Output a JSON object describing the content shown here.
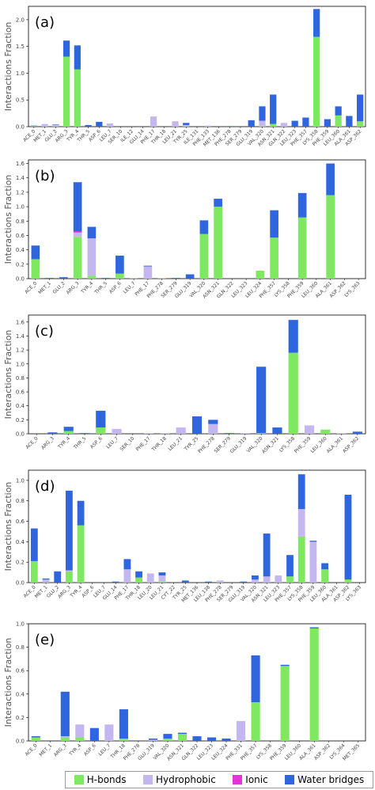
{
  "colors": {
    "hbonds": "#7de860",
    "hydrophobic": "#c4b6ef",
    "ionic": "#e632d6",
    "water": "#2f66e0"
  },
  "legend": {
    "hbonds": "H-bonds",
    "hydrophobic": "Hydrophobic",
    "ionic": "Ionic",
    "water": "Water bridges"
  },
  "chart_data": [
    {
      "type": "bar",
      "stacked": true,
      "panel": "(a)",
      "ylabel": "Interactions Fraction",
      "ylim": [
        0,
        2.25
      ],
      "yticks": [
        0.0,
        0.5,
        1.0,
        1.5,
        2.0
      ],
      "categories": [
        "ACE_0",
        "MET_1",
        "GLU_2",
        "ARG_3",
        "TYR_4",
        "THR_5",
        "ASP_6",
        "LEU_7",
        "SER_10",
        "ILE_12",
        "GLU_14",
        "PHE_17",
        "THR_18",
        "LEU_21",
        "TYR_25",
        "ILE_131",
        "PHE_133",
        "MET_136",
        "PHE_278",
        "SER_279",
        "GLU_319",
        "VAL_320",
        "ASN_321",
        "GLN_322",
        "LEU_323",
        "PHE_357",
        "LYS_358",
        "PHE_359",
        "LEU_360",
        "ALA_361",
        "ASP_362"
      ],
      "series": [
        {
          "name": "H-bonds",
          "values": [
            0.01,
            0,
            0,
            1.31,
            1.07,
            0,
            0,
            0,
            0,
            0,
            0,
            0,
            0,
            0,
            0,
            0,
            0,
            0,
            0,
            0,
            0,
            0.01,
            0.05,
            0,
            0,
            0,
            1.68,
            0,
            0.21,
            0,
            0.1
          ]
        },
        {
          "name": "Hydrophobic",
          "values": [
            0,
            0.05,
            0.03,
            0,
            0,
            0,
            0,
            0.06,
            0,
            0,
            0,
            0.19,
            0,
            0.1,
            0.03,
            0,
            0.02,
            0,
            0,
            0,
            0,
            0.1,
            0,
            0.07,
            0,
            0,
            0,
            0,
            0,
            0,
            0
          ]
        },
        {
          "name": "Ionic",
          "values": [
            0,
            0,
            0,
            0,
            0,
            0,
            0,
            0,
            0,
            0,
            0,
            0,
            0,
            0,
            0,
            0,
            0,
            0,
            0,
            0,
            0,
            0,
            0,
            0,
            0,
            0,
            0,
            0,
            0,
            0,
            0
          ]
        },
        {
          "name": "Water bridges",
          "values": [
            0.01,
            0,
            0.01,
            0.3,
            0.45,
            0.03,
            0.09,
            0,
            0,
            0,
            0,
            0,
            0,
            0,
            0.04,
            0,
            0,
            0,
            0.01,
            0,
            0.12,
            0.27,
            0.55,
            0,
            0.11,
            0.17,
            0.52,
            0.14,
            0.17,
            0.2,
            0.5
          ]
        }
      ]
    },
    {
      "type": "bar",
      "stacked": true,
      "panel": "(b)",
      "ylabel": "Interactions Fraction",
      "ylim": [
        0,
        1.65
      ],
      "yticks": [
        0.0,
        0.2,
        0.4,
        0.6,
        0.8,
        1.0,
        1.2,
        1.4,
        1.6
      ],
      "categories": [
        "ACE_0",
        "MET_1",
        "GLU_2",
        "ARG_3",
        "TYR_4",
        "THR_5",
        "ASP_6",
        "LEU_7",
        "PHE_17",
        "PHE_278",
        "SER_279",
        "GLU_319",
        "VAL_320",
        "ASN_321",
        "GLN_322",
        "LEU_323",
        "LEU_324",
        "PHE_357",
        "LYS_358",
        "PHE_359",
        "LEU_360",
        "ALA_361",
        "ASP_362",
        "LYS_363"
      ],
      "series": [
        {
          "name": "H-bonds",
          "values": [
            0.27,
            0,
            0,
            0.58,
            0.04,
            0,
            0.07,
            0,
            0,
            0,
            0,
            0,
            0.62,
            1.0,
            0,
            0,
            0.11,
            0.57,
            0,
            0.85,
            0,
            1.16,
            0,
            0
          ]
        },
        {
          "name": "Hydrophobic",
          "values": [
            0,
            0,
            0,
            0.06,
            0.52,
            0,
            0,
            0.01,
            0.17,
            0.01,
            0,
            0,
            0,
            0,
            0,
            0,
            0,
            0,
            0,
            0,
            0,
            0,
            0,
            0
          ]
        },
        {
          "name": "Ionic",
          "values": [
            0,
            0,
            0,
            0.02,
            0,
            0,
            0,
            0,
            0,
            0,
            0,
            0,
            0,
            0,
            0,
            0,
            0,
            0,
            0,
            0,
            0,
            0,
            0,
            0
          ]
        },
        {
          "name": "Water bridges",
          "values": [
            0.19,
            0.01,
            0.02,
            0.68,
            0.16,
            0.01,
            0.25,
            0,
            0.01,
            0,
            0.01,
            0.06,
            0.19,
            0.11,
            0,
            0,
            0,
            0.38,
            0,
            0.34,
            0,
            0.44,
            0,
            0
          ]
        }
      ]
    },
    {
      "type": "bar",
      "stacked": true,
      "panel": "(c)",
      "ylabel": "Interactions Fraction",
      "ylim": [
        0,
        1.7
      ],
      "yticks": [
        0.0,
        0.2,
        0.4,
        0.6,
        0.8,
        1.0,
        1.2,
        1.4,
        1.6
      ],
      "categories": [
        "ACE_0",
        "ARG_3",
        "TYR_4",
        "THR_5",
        "ASP_6",
        "LEU_7",
        "SER_10",
        "PHE_17",
        "THR_18",
        "LEU_21",
        "TYR_25",
        "PHE_278",
        "SER_279",
        "GLU_319",
        "VAL_320",
        "ASN_321",
        "LYS_358",
        "PHE_359",
        "LEU_360",
        "ALA_361",
        "ASP_362"
      ],
      "series": [
        {
          "name": "H-bonds",
          "values": [
            0,
            0,
            0.04,
            0,
            0.09,
            0,
            0,
            0,
            0,
            0,
            0,
            0,
            0,
            0,
            0.01,
            0,
            1.16,
            0,
            0.06,
            0,
            0
          ]
        },
        {
          "name": "Hydrophobic",
          "values": [
            0,
            0,
            0,
            0,
            0,
            0.07,
            0,
            0.01,
            0.01,
            0.09,
            0,
            0.14,
            0,
            0.01,
            0,
            0,
            0,
            0.12,
            0,
            0.01,
            0
          ]
        },
        {
          "name": "Ionic",
          "values": [
            0,
            0,
            0,
            0,
            0,
            0,
            0,
            0,
            0,
            0,
            0,
            0,
            0,
            0,
            0,
            0,
            0,
            0,
            0,
            0,
            0
          ]
        },
        {
          "name": "Water bridges",
          "values": [
            0,
            0.02,
            0.06,
            0.01,
            0.24,
            0,
            0,
            0,
            0,
            0,
            0.25,
            0.06,
            0.01,
            0,
            0.95,
            0.09,
            0.47,
            0,
            0,
            0,
            0.03
          ]
        }
      ]
    },
    {
      "type": "bar",
      "stacked": true,
      "panel": "(d)",
      "ylabel": "Interactions Fraction",
      "ylim": [
        0,
        1.1
      ],
      "yticks": [
        0.0,
        0.2,
        0.4,
        0.6,
        0.8,
        1.0
      ],
      "categories": [
        "ACE_0",
        "MET_1",
        "GLU_2",
        "ARG_3",
        "TYR_4",
        "ASP_6",
        "LEU_7",
        "GLU_14",
        "PHE_17",
        "THR_18",
        "LEU_20",
        "LEU_21",
        "CYT_22",
        "TYR_25",
        "MET_136",
        "LEU_138",
        "PHE_278",
        "SER_279",
        "GLU_319",
        "VAL_320",
        "ASN_321",
        "LEU_323",
        "PHE_357",
        "LYS_358",
        "PHE_359",
        "LEU_360",
        "ALA_361",
        "ASP_362",
        "LYS_363"
      ],
      "series": [
        {
          "name": "H-bonds",
          "values": [
            0.21,
            0,
            0,
            0.11,
            0.56,
            0,
            0,
            0,
            0,
            0.05,
            0,
            0.01,
            0,
            0,
            0,
            0,
            0,
            0,
            0,
            0,
            0,
            0,
            0.06,
            0.45,
            0,
            0.13,
            0,
            0.03,
            0
          ]
        },
        {
          "name": "Hydrophobic",
          "values": [
            0,
            0.03,
            0,
            0.01,
            0,
            0,
            0,
            0,
            0.13,
            0,
            0.09,
            0.06,
            0,
            0,
            0,
            0,
            0.02,
            0,
            0,
            0.03,
            0.06,
            0.07,
            0,
            0.27,
            0.4,
            0,
            0,
            0,
            0
          ]
        },
        {
          "name": "Ionic",
          "values": [
            0,
            0,
            0,
            0,
            0,
            0,
            0,
            0,
            0,
            0,
            0,
            0,
            0,
            0,
            0,
            0,
            0,
            0,
            0,
            0,
            0,
            0,
            0,
            0,
            0,
            0,
            0,
            0,
            0
          ]
        },
        {
          "name": "Water bridges",
          "values": [
            0.32,
            0.01,
            0.11,
            0.78,
            0.24,
            0,
            0,
            0.01,
            0.1,
            0.06,
            0,
            0.03,
            0,
            0.02,
            0,
            0.01,
            0,
            0,
            0.01,
            0.04,
            0.42,
            0,
            0.21,
            0.34,
            0.01,
            0.06,
            0,
            0.83,
            0
          ]
        }
      ]
    },
    {
      "type": "bar",
      "stacked": true,
      "panel": "(e)",
      "ylabel": "Interactions Fraction",
      "ylim": [
        0,
        1.0
      ],
      "yticks": [
        0.0,
        0.2,
        0.4,
        0.6,
        0.8,
        1.0
      ],
      "categories": [
        "ACE_0",
        "MET_1",
        "ARG_3",
        "TYR_4",
        "ASP_6",
        "LEU_7",
        "THR_18",
        "PHE_278",
        "GLU_319",
        "VAL_320",
        "ASN_321",
        "GLN_322",
        "LEU_323",
        "LEU_324",
        "PHE_331",
        "PHE_357",
        "LYS_358",
        "PHE_359",
        "LEU_360",
        "ALA_361",
        "ASP_362",
        "LYS_364",
        "MET_365"
      ],
      "series": [
        {
          "name": "H-bonds",
          "values": [
            0.03,
            0,
            0.03,
            0.03,
            0,
            0,
            0.02,
            0,
            0,
            0.02,
            0.06,
            0,
            0,
            0,
            0,
            0.33,
            0,
            0.64,
            0,
            0.96,
            0,
            0,
            0
          ]
        },
        {
          "name": "Hydrophobic",
          "values": [
            0,
            0,
            0.01,
            0.11,
            0,
            0.14,
            0,
            0,
            0.01,
            0,
            0,
            0,
            0,
            0,
            0.17,
            0,
            0,
            0,
            0,
            0,
            0,
            0,
            0
          ]
        },
        {
          "name": "Ionic",
          "values": [
            0,
            0,
            0,
            0,
            0,
            0,
            0,
            0,
            0,
            0,
            0,
            0,
            0,
            0,
            0,
            0,
            0,
            0,
            0,
            0,
            0,
            0,
            0
          ]
        },
        {
          "name": "Water bridges",
          "values": [
            0.01,
            0,
            0.38,
            0,
            0.11,
            0,
            0.25,
            0,
            0.01,
            0.04,
            0.01,
            0.04,
            0.03,
            0.02,
            0,
            0.4,
            0,
            0.01,
            0,
            0.01,
            0,
            0,
            0
          ]
        }
      ]
    }
  ]
}
